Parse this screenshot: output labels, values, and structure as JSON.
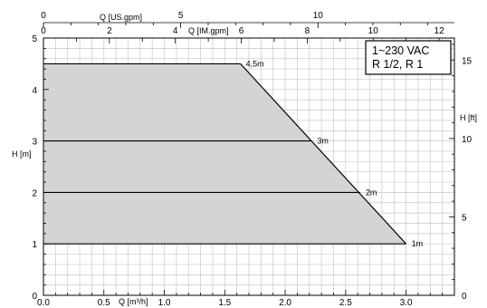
{
  "chart_data": {
    "type": "area",
    "title": "",
    "grid": true,
    "x_bottom": {
      "label": "Q [m³/h]",
      "range": [
        0,
        3.4
      ],
      "ticks": [
        "0.0",
        "0.5",
        "1.0",
        "1.5",
        "2.0",
        "2.5",
        "3.0"
      ]
    },
    "x_top_usgpm": {
      "label": "Q [US.gpm]",
      "ticks": [
        "0",
        "5",
        "10"
      ]
    },
    "x_top_imgpm": {
      "label": "Q [IM.gpm]",
      "ticks": [
        "0",
        "2",
        "4",
        "6",
        "8",
        "10",
        "12"
      ]
    },
    "y_left": {
      "label": "H [m]",
      "range": [
        0,
        5
      ],
      "ticks": [
        "0",
        "1",
        "2",
        "3",
        "4",
        "5"
      ]
    },
    "y_right": {
      "label": "H [ft]",
      "ticks": [
        "0",
        "5",
        "10",
        "15"
      ]
    },
    "envelope": {
      "x": [
        0,
        1.63,
        3.0,
        0
      ],
      "y": [
        4.5,
        4.5,
        1.0,
        1.0
      ]
    },
    "series": [
      {
        "name": "4,5m",
        "x": [
          0,
          1.63
        ],
        "y": [
          4.5,
          4.5
        ]
      },
      {
        "name": "3m",
        "x": [
          0,
          2.22
        ],
        "y": [
          3,
          3
        ]
      },
      {
        "name": "2m",
        "x": [
          0,
          2.62
        ],
        "y": [
          2,
          2
        ]
      },
      {
        "name": "1m",
        "x": [
          0,
          3.0
        ],
        "y": [
          1,
          1
        ]
      }
    ],
    "annotation": [
      "1~230 VAC",
      "R 1/2, R 1"
    ]
  }
}
